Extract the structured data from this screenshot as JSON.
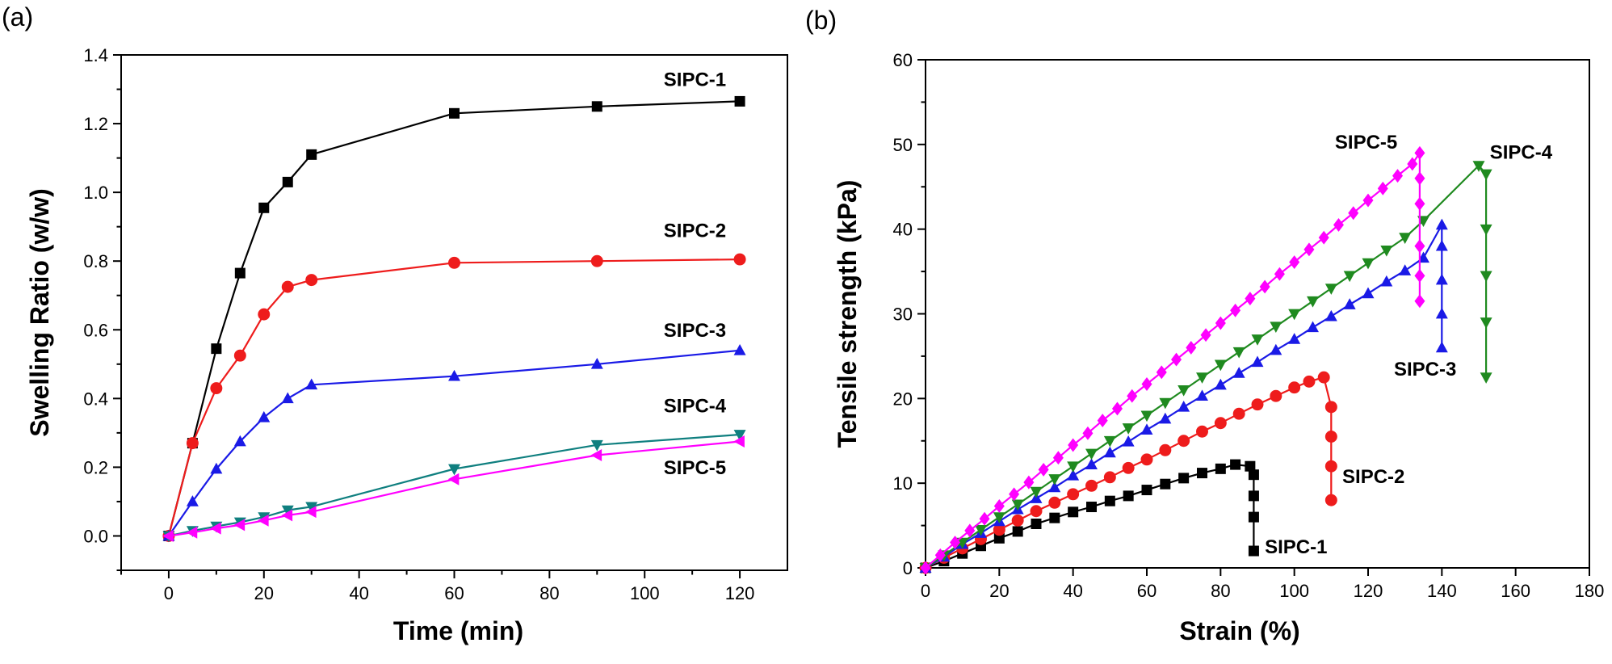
{
  "chart_data": [
    {
      "panel": "(a)",
      "type": "line",
      "xlabel": "Time (min)",
      "ylabel": "Swelling Ratio (w/w)",
      "xlim": [
        -10,
        130
      ],
      "ylim": [
        -0.1,
        1.4
      ],
      "xticks": [
        0,
        20,
        40,
        60,
        80,
        100,
        120
      ],
      "yticks": [
        0.0,
        0.2,
        0.4,
        0.6,
        0.8,
        1.0,
        1.2,
        1.4
      ],
      "series": [
        {
          "name": "SIPC-1",
          "color": "#000000",
          "marker": "square",
          "x": [
            0,
            5,
            10,
            15,
            20,
            25,
            30,
            60,
            90,
            120
          ],
          "y": [
            0.0,
            0.27,
            0.545,
            0.765,
            0.955,
            1.03,
            1.11,
            1.23,
            1.25,
            1.265
          ]
        },
        {
          "name": "SIPC-2",
          "color": "#ee1c1c",
          "marker": "circle",
          "x": [
            0,
            5,
            10,
            15,
            20,
            25,
            30,
            60,
            90,
            120
          ],
          "y": [
            0.0,
            0.27,
            0.43,
            0.525,
            0.645,
            0.725,
            0.745,
            0.795,
            0.8,
            0.805
          ]
        },
        {
          "name": "SIPC-3",
          "color": "#1a1ae6",
          "marker": "triangle-up",
          "x": [
            0,
            5,
            10,
            15,
            20,
            25,
            30,
            60,
            90,
            120
          ],
          "y": [
            0.0,
            0.1,
            0.195,
            0.275,
            0.345,
            0.4,
            0.44,
            0.465,
            0.5,
            0.54
          ]
        },
        {
          "name": "SIPC-4",
          "color": "#0f7f7f",
          "marker": "triangle-down",
          "x": [
            0,
            5,
            10,
            15,
            20,
            25,
            30,
            60,
            90,
            120
          ],
          "y": [
            0.0,
            0.015,
            0.028,
            0.04,
            0.055,
            0.075,
            0.085,
            0.195,
            0.265,
            0.295
          ]
        },
        {
          "name": "SIPC-5",
          "color": "#ff00ff",
          "marker": "triangle-left",
          "x": [
            0,
            5,
            10,
            15,
            20,
            25,
            30,
            60,
            90,
            120
          ],
          "y": [
            0.0,
            0.01,
            0.022,
            0.032,
            0.045,
            0.06,
            0.07,
            0.165,
            0.235,
            0.275
          ]
        }
      ],
      "labels": [
        {
          "text": "SIPC-1",
          "x": 104,
          "y": 1.31
        },
        {
          "text": "SIPC-2",
          "x": 104,
          "y": 0.87
        },
        {
          "text": "SIPC-3",
          "x": 104,
          "y": 0.58
        },
        {
          "text": "SIPC-4",
          "x": 104,
          "y": 0.36
        },
        {
          "text": "SIPC-5",
          "x": 104,
          "y": 0.18
        }
      ]
    },
    {
      "panel": "(b)",
      "type": "line",
      "xlabel": "Strain (%)",
      "ylabel": "Tensile strength (kPa)",
      "xlim": [
        0,
        180
      ],
      "ylim": [
        0,
        60
      ],
      "xticks": [
        0,
        20,
        40,
        60,
        80,
        100,
        120,
        140,
        160,
        180
      ],
      "yticks": [
        0,
        10,
        20,
        30,
        40,
        50,
        60
      ],
      "series": [
        {
          "name": "SIPC-1",
          "color": "#000000",
          "marker": "square",
          "x": [
            0,
            5,
            10,
            15,
            20,
            25,
            30,
            35,
            40,
            45,
            50,
            55,
            60,
            65,
            70,
            75,
            80,
            84,
            88,
            89,
            89,
            89,
            89
          ],
          "y": [
            0,
            0.8,
            1.7,
            2.6,
            3.5,
            4.3,
            5.2,
            5.9,
            6.6,
            7.2,
            7.9,
            8.5,
            9.2,
            9.9,
            10.6,
            11.2,
            11.7,
            12.2,
            12.0,
            11.0,
            8.5,
            6.0,
            2.0
          ]
        },
        {
          "name": "SIPC-2",
          "color": "#ee1c1c",
          "marker": "circle",
          "x": [
            0,
            5,
            10,
            15,
            20,
            25,
            30,
            35,
            40,
            45,
            50,
            55,
            60,
            65,
            70,
            75,
            80,
            85,
            90,
            95,
            100,
            104,
            108,
            110,
            110,
            110,
            110
          ],
          "y": [
            0,
            1.2,
            2.3,
            3.4,
            4.5,
            5.6,
            6.7,
            7.7,
            8.7,
            9.7,
            10.7,
            11.8,
            12.8,
            13.9,
            15.0,
            16.1,
            17.1,
            18.2,
            19.3,
            20.3,
            21.3,
            22.0,
            22.5,
            19.0,
            15.5,
            12.0,
            8.0
          ]
        },
        {
          "name": "SIPC-3",
          "color": "#1a1ae6",
          "marker": "triangle-up",
          "x": [
            0,
            5,
            10,
            15,
            20,
            25,
            30,
            35,
            40,
            45,
            50,
            55,
            60,
            65,
            70,
            75,
            80,
            85,
            90,
            95,
            100,
            105,
            110,
            115,
            120,
            125,
            130,
            135,
            140,
            140,
            140,
            140,
            140
          ],
          "y": [
            0,
            1.3,
            2.8,
            4.1,
            5.5,
            6.9,
            8.2,
            9.5,
            10.9,
            12.2,
            13.6,
            14.9,
            16.3,
            17.6,
            19.0,
            20.3,
            21.6,
            23.0,
            24.3,
            25.7,
            27.0,
            28.4,
            29.7,
            31.1,
            32.4,
            33.8,
            35.1,
            36.6,
            40.5,
            38.0,
            34.0,
            30.0,
            26.0
          ]
        },
        {
          "name": "SIPC-4",
          "color": "#1f8a1f",
          "marker": "triangle-down",
          "x": [
            0,
            5,
            10,
            15,
            20,
            25,
            30,
            35,
            40,
            45,
            50,
            55,
            60,
            65,
            70,
            75,
            80,
            85,
            90,
            95,
            100,
            105,
            110,
            115,
            120,
            125,
            130,
            135,
            150,
            152,
            152,
            152,
            152,
            152
          ],
          "y": [
            0,
            1.5,
            3.0,
            4.5,
            6.0,
            7.5,
            9.0,
            10.5,
            12.0,
            13.5,
            15.0,
            16.5,
            18.0,
            19.5,
            21.0,
            22.5,
            24.0,
            25.5,
            27.0,
            28.5,
            30.0,
            31.5,
            33.0,
            34.5,
            36.0,
            37.5,
            39.0,
            41.0,
            47.5,
            46.5,
            40.0,
            34.5,
            29.0,
            22.5
          ]
        },
        {
          "name": "SIPC-5",
          "color": "#ff00ff",
          "marker": "diamond",
          "x": [
            0,
            4,
            8,
            12,
            16,
            20,
            24,
            28,
            32,
            36,
            40,
            44,
            48,
            52,
            56,
            60,
            64,
            68,
            72,
            76,
            80,
            84,
            88,
            92,
            96,
            100,
            104,
            108,
            112,
            116,
            120,
            124,
            128,
            132,
            134,
            134,
            134,
            134,
            134,
            134
          ],
          "y": [
            0,
            1.5,
            3.0,
            4.4,
            5.8,
            7.3,
            8.7,
            10.1,
            11.6,
            13.0,
            14.5,
            15.9,
            17.4,
            18.8,
            20.3,
            21.7,
            23.1,
            24.6,
            26.0,
            27.5,
            28.9,
            30.4,
            31.8,
            33.2,
            34.7,
            36.1,
            37.6,
            39.0,
            40.5,
            41.9,
            43.4,
            44.8,
            46.3,
            47.7,
            49.0,
            46.0,
            43.0,
            38.0,
            34.5,
            31.5
          ]
        }
      ],
      "labels": [
        {
          "text": "SIPC-5",
          "x": 111,
          "y": 49.5
        },
        {
          "text": "SIPC-4",
          "x": 153,
          "y": 48.3
        },
        {
          "text": "SIPC-3",
          "x": 127,
          "y": 22.7
        },
        {
          "text": "SIPC-2",
          "x": 113,
          "y": 10.0
        },
        {
          "text": "SIPC-1",
          "x": 92,
          "y": 1.7
        }
      ]
    }
  ]
}
